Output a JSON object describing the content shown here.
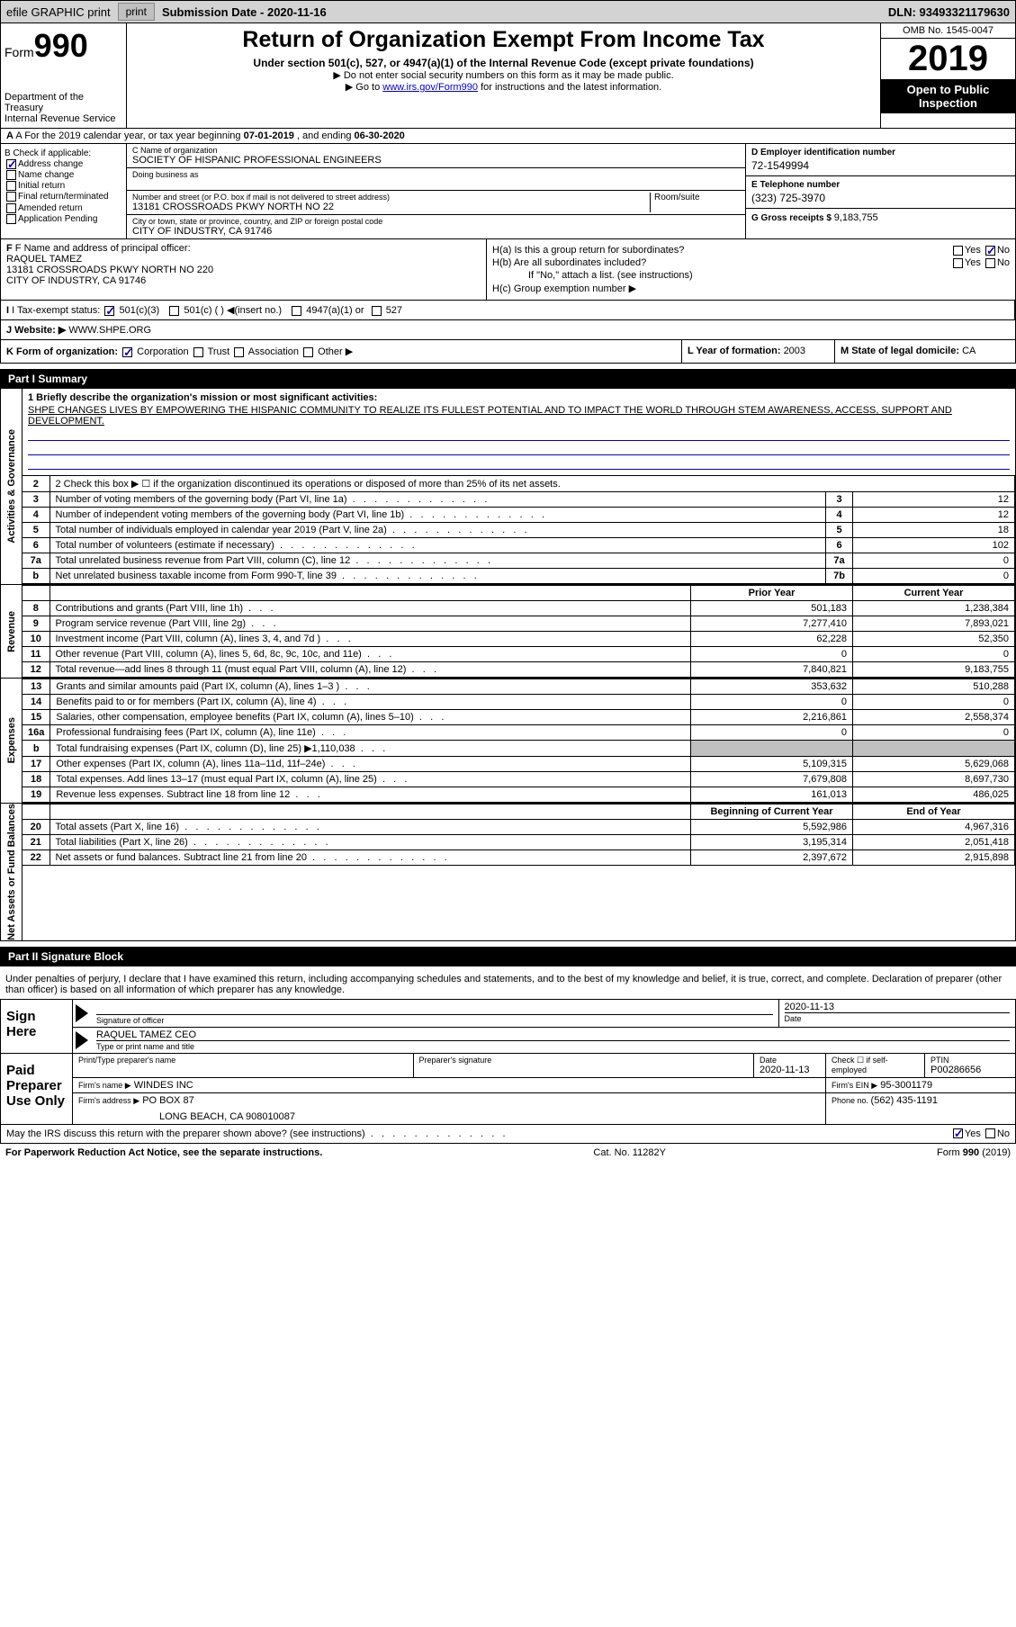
{
  "topbar": {
    "efile": "efile GRAPHIC print",
    "submission_label": "Submission Date - ",
    "submission_date": "2020-11-16",
    "dln": "DLN: 93493321179630"
  },
  "header": {
    "form_prefix": "Form",
    "form_num": "990",
    "dept": "Department of the Treasury\nInternal Revenue Service",
    "title": "Return of Organization Exempt From Income Tax",
    "under": "Under section 501(c), 527, or 4947(a)(1) of the Internal Revenue Code (except private foundations)",
    "note1": "▶ Do not enter social security numbers on this form as it may be made public.",
    "note2_pre": "▶ Go to ",
    "note2_link": "www.irs.gov/Form990",
    "note2_post": " for instructions and the latest information.",
    "omb": "OMB No. 1545-0047",
    "year": "2019",
    "open": "Open to Public Inspection"
  },
  "rowA": {
    "text_pre": "A For the 2019 calendar year, or tax year beginning ",
    "begin": "07-01-2019",
    "mid": " , and ending ",
    "end": "06-30-2020"
  },
  "colB": {
    "label": "B Check if applicable:",
    "items": [
      "Address change",
      "Name change",
      "Initial return",
      "Final return/terminated",
      "Amended return",
      "Application Pending"
    ],
    "checked": [
      true,
      false,
      false,
      false,
      false,
      false
    ]
  },
  "colC": {
    "name_label": "C Name of organization",
    "name": "SOCIETY OF HISPANIC PROFESSIONAL ENGINEERS",
    "dba_label": "Doing business as",
    "addr_label": "Number and street (or P.O. box if mail is not delivered to street address)",
    "addr": "13181 CROSSROADS PKWY NORTH NO 22",
    "suite_label": "Room/suite",
    "city_label": "City or town, state or province, country, and ZIP or foreign postal code",
    "city": "CITY OF INDUSTRY, CA  91746"
  },
  "colD": {
    "ein_label": "D Employer identification number",
    "ein": "72-1549994",
    "phone_label": "E Telephone number",
    "phone": "(323) 725-3970",
    "receipts_label": "G Gross receipts $ ",
    "receipts": "9,183,755"
  },
  "colF": {
    "label": "F Name and address of principal officer:",
    "name": "RAQUEL TAMEZ",
    "addr1": "13181 CROSSROADS PKWY NORTH NO 220",
    "addr2": "CITY OF INDUSTRY, CA  91746"
  },
  "colH": {
    "ha": "H(a)  Is this a group return for subordinates?",
    "hb": "H(b)  Are all subordinates included?",
    "hb_note": "If \"No,\" attach a list. (see instructions)",
    "hc": "H(c)  Group exemption number ▶"
  },
  "colI": {
    "label": "I Tax-exempt status:",
    "opts": [
      "501(c)(3)",
      "501(c) (  ) ◀(insert no.)",
      "4947(a)(1) or",
      "527"
    ]
  },
  "colJ": {
    "label": "J Website: ▶",
    "value": "WWW.SHPE.ORG"
  },
  "colK": {
    "label": "K Form of organization:",
    "opts": [
      "Corporation",
      "Trust",
      "Association",
      "Other ▶"
    ]
  },
  "colL": {
    "label": "L Year of formation: ",
    "value": "2003"
  },
  "colM": {
    "label": "M State of legal domicile: ",
    "value": "CA"
  },
  "part1": {
    "header": "Part I      Summary",
    "line1_label": "1  Briefly describe the organization's mission or most significant activities:",
    "line1_text": "SHPE CHANGES LIVES BY EMPOWERING THE HISPANIC COMMUNITY TO REALIZE ITS FULLEST POTENTIAL AND TO IMPACT THE WORLD THROUGH STEM AWARENESS, ACCESS, SUPPORT AND DEVELOPMENT.",
    "line2": "2   Check this box ▶ ☐ if the organization discontinued its operations or disposed of more than 25% of its net assets.",
    "governance": [
      {
        "n": "3",
        "label": "Number of voting members of the governing body (Part VI, line 1a)",
        "col": "3",
        "val": "12"
      },
      {
        "n": "4",
        "label": "Number of independent voting members of the governing body (Part VI, line 1b)",
        "col": "4",
        "val": "12"
      },
      {
        "n": "5",
        "label": "Total number of individuals employed in calendar year 2019 (Part V, line 2a)",
        "col": "5",
        "val": "18"
      },
      {
        "n": "6",
        "label": "Total number of volunteers (estimate if necessary)",
        "col": "6",
        "val": "102"
      },
      {
        "n": "7a",
        "label": "Total unrelated business revenue from Part VIII, column (C), line 12",
        "col": "7a",
        "val": "0"
      },
      {
        "n": "b",
        "label": "Net unrelated business taxable income from Form 990-T, line 39",
        "col": "7b",
        "val": "0"
      }
    ],
    "prior_label": "Prior Year",
    "current_label": "Current Year",
    "revenue": [
      {
        "n": "8",
        "label": "Contributions and grants (Part VIII, line 1h)",
        "prior": "501,183",
        "curr": "1,238,384"
      },
      {
        "n": "9",
        "label": "Program service revenue (Part VIII, line 2g)",
        "prior": "7,277,410",
        "curr": "7,893,021"
      },
      {
        "n": "10",
        "label": "Investment income (Part VIII, column (A), lines 3, 4, and 7d )",
        "prior": "62,228",
        "curr": "52,350"
      },
      {
        "n": "11",
        "label": "Other revenue (Part VIII, column (A), lines 5, 6d, 8c, 9c, 10c, and 11e)",
        "prior": "0",
        "curr": "0"
      },
      {
        "n": "12",
        "label": "Total revenue—add lines 8 through 11 (must equal Part VIII, column (A), line 12)",
        "prior": "7,840,821",
        "curr": "9,183,755"
      }
    ],
    "expenses": [
      {
        "n": "13",
        "label": "Grants and similar amounts paid (Part IX, column (A), lines 1–3 )",
        "prior": "353,632",
        "curr": "510,288"
      },
      {
        "n": "14",
        "label": "Benefits paid to or for members (Part IX, column (A), line 4)",
        "prior": "0",
        "curr": "0"
      },
      {
        "n": "15",
        "label": "Salaries, other compensation, employee benefits (Part IX, column (A), lines 5–10)",
        "prior": "2,216,861",
        "curr": "2,558,374"
      },
      {
        "n": "16a",
        "label": "Professional fundraising fees (Part IX, column (A), line 11e)",
        "prior": "0",
        "curr": "0"
      },
      {
        "n": "b",
        "label": "Total fundraising expenses (Part IX, column (D), line 25) ▶1,110,038",
        "prior": "",
        "curr": "",
        "shaded": true
      },
      {
        "n": "17",
        "label": "Other expenses (Part IX, column (A), lines 11a–11d, 11f–24e)",
        "prior": "5,109,315",
        "curr": "5,629,068"
      },
      {
        "n": "18",
        "label": "Total expenses. Add lines 13–17 (must equal Part IX, column (A), line 25)",
        "prior": "7,679,808",
        "curr": "8,697,730"
      },
      {
        "n": "19",
        "label": "Revenue less expenses. Subtract line 18 from line 12",
        "prior": "161,013",
        "curr": "486,025"
      }
    ],
    "begin_label": "Beginning of Current Year",
    "end_label": "End of Year",
    "netassets": [
      {
        "n": "20",
        "label": "Total assets (Part X, line 16)",
        "prior": "5,592,986",
        "curr": "4,967,316"
      },
      {
        "n": "21",
        "label": "Total liabilities (Part X, line 26)",
        "prior": "3,195,314",
        "curr": "2,051,418"
      },
      {
        "n": "22",
        "label": "Net assets or fund balances. Subtract line 21 from line 20",
        "prior": "2,397,672",
        "curr": "2,915,898"
      }
    ],
    "vert_labels": [
      "Activities & Governance",
      "Revenue",
      "Expenses",
      "Net Assets or Fund Balances"
    ]
  },
  "part2": {
    "header": "Part II     Signature Block",
    "text": "Under penalties of perjury, I declare that I have examined this return, including accompanying schedules and statements, and to the best of my knowledge and belief, it is true, correct, and complete. Declaration of preparer (other than officer) is based on all information of which preparer has any knowledge.",
    "sign_here": "Sign Here",
    "sig_officer": "Signature of officer",
    "date_label": "Date",
    "sig_date": "2020-11-13",
    "officer_name": "RAQUEL TAMEZ  CEO",
    "type_name": "Type or print name and title",
    "paid": "Paid Preparer Use Only",
    "prep_name_label": "Print/Type preparer's name",
    "prep_sig_label": "Preparer's signature",
    "prep_date_label": "Date",
    "prep_date": "2020-11-13",
    "check_self": "Check ☐ if self-employed",
    "ptin_label": "PTIN",
    "ptin": "P00286656",
    "firm_name_label": "Firm's name    ▶",
    "firm_name": "WINDES INC",
    "firm_ein_label": "Firm's EIN ▶",
    "firm_ein": "95-3001179",
    "firm_addr_label": "Firm's address ▶",
    "firm_addr": "PO BOX 87",
    "firm_city": "LONG BEACH, CA  908010087",
    "firm_phone_label": "Phone no. ",
    "firm_phone": "(562) 435-1191",
    "discuss": "May the IRS discuss this return with the preparer shown above? (see instructions)"
  },
  "footer": {
    "left": "For Paperwork Reduction Act Notice, see the separate instructions.",
    "center": "Cat. No. 11282Y",
    "right_pre": "Form ",
    "right_form": "990",
    "right_post": " (2019)"
  }
}
